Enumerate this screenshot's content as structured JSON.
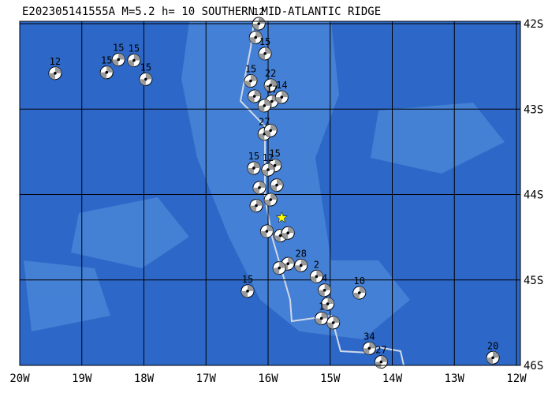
{
  "chart_data": {
    "type": "map",
    "title": "E202305141555A M=5.2 h= 10 SOUTHERN MID-ATLANTIC RIDGE",
    "xlim": [
      -20,
      -12
    ],
    "ylim": [
      -42,
      -46
    ],
    "xticks": [
      {
        "value": -20,
        "label": "20W"
      },
      {
        "value": -19,
        "label": "19W"
      },
      {
        "value": -18,
        "label": "18W"
      },
      {
        "value": -17,
        "label": "17W"
      },
      {
        "value": -16,
        "label": "16W"
      },
      {
        "value": -15,
        "label": "15W"
      },
      {
        "value": -14,
        "label": "14W"
      },
      {
        "value": -13,
        "label": "13W"
      },
      {
        "value": -12,
        "label": "12W"
      }
    ],
    "yticks": [
      {
        "value": -42,
        "label": "42S"
      },
      {
        "value": -43,
        "label": "43S"
      },
      {
        "value": -44,
        "label": "44S"
      },
      {
        "value": -45,
        "label": "45S"
      },
      {
        "value": -46,
        "label": "46S"
      }
    ],
    "grid": true,
    "epicenter": {
      "lon": -15.78,
      "lat": -44.27,
      "color": "#ffff00"
    },
    "events": [
      {
        "lon": -19.43,
        "lat": -42.58,
        "label": "12"
      },
      {
        "lon": -18.6,
        "lat": -42.57,
        "label": "15"
      },
      {
        "lon": -18.41,
        "lat": -42.42,
        "label": "15"
      },
      {
        "lon": -18.16,
        "lat": -42.43,
        "label": "15"
      },
      {
        "lon": -17.97,
        "lat": -42.65,
        "label": "15"
      },
      {
        "lon": -16.15,
        "lat": -42.0,
        "label": "12"
      },
      {
        "lon": -16.2,
        "lat": -42.16,
        "label": null
      },
      {
        "lon": -16.05,
        "lat": -42.35,
        "label": "15"
      },
      {
        "lon": -16.28,
        "lat": -42.67,
        "label": "15"
      },
      {
        "lon": -15.96,
        "lat": -42.72,
        "label": "22"
      },
      {
        "lon": -16.22,
        "lat": -42.85,
        "label": null
      },
      {
        "lon": -15.94,
        "lat": -42.91,
        "label": "17"
      },
      {
        "lon": -15.78,
        "lat": -42.86,
        "label": "14"
      },
      {
        "lon": -16.06,
        "lat": -42.96,
        "label": null
      },
      {
        "lon": -16.06,
        "lat": -43.29,
        "label": "27"
      },
      {
        "lon": -15.96,
        "lat": -43.25,
        "label": null
      },
      {
        "lon": -16.23,
        "lat": -43.69,
        "label": "15"
      },
      {
        "lon": -15.89,
        "lat": -43.66,
        "label": "15"
      },
      {
        "lon": -16.0,
        "lat": -43.71,
        "label": "12"
      },
      {
        "lon": -15.86,
        "lat": -43.89,
        "label": null
      },
      {
        "lon": -16.14,
        "lat": -43.92,
        "label": null
      },
      {
        "lon": -15.96,
        "lat": -44.06,
        "label": null
      },
      {
        "lon": -16.19,
        "lat": -44.13,
        "label": null
      },
      {
        "lon": -16.02,
        "lat": -44.43,
        "label": null
      },
      {
        "lon": -15.8,
        "lat": -44.48,
        "label": null
      },
      {
        "lon": -15.68,
        "lat": -44.45,
        "label": null
      },
      {
        "lon": -15.68,
        "lat": -44.81,
        "label": null
      },
      {
        "lon": -15.82,
        "lat": -44.86,
        "label": null
      },
      {
        "lon": -15.47,
        "lat": -44.83,
        "label": "28"
      },
      {
        "lon": -15.22,
        "lat": -44.96,
        "label": "2"
      },
      {
        "lon": -15.09,
        "lat": -45.12,
        "label": "4"
      },
      {
        "lon": -15.04,
        "lat": -45.28,
        "label": null
      },
      {
        "lon": -15.14,
        "lat": -45.45,
        "label": "1"
      },
      {
        "lon": -14.95,
        "lat": -45.5,
        "label": null
      },
      {
        "lon": -16.33,
        "lat": -45.13,
        "label": "15"
      },
      {
        "lon": -14.53,
        "lat": -45.15,
        "label": "10"
      },
      {
        "lon": -14.37,
        "lat": -45.8,
        "label": "34"
      },
      {
        "lon": -14.18,
        "lat": -45.96,
        "label": "27"
      },
      {
        "lon": -12.38,
        "lat": -45.91,
        "label": "20"
      }
    ]
  }
}
